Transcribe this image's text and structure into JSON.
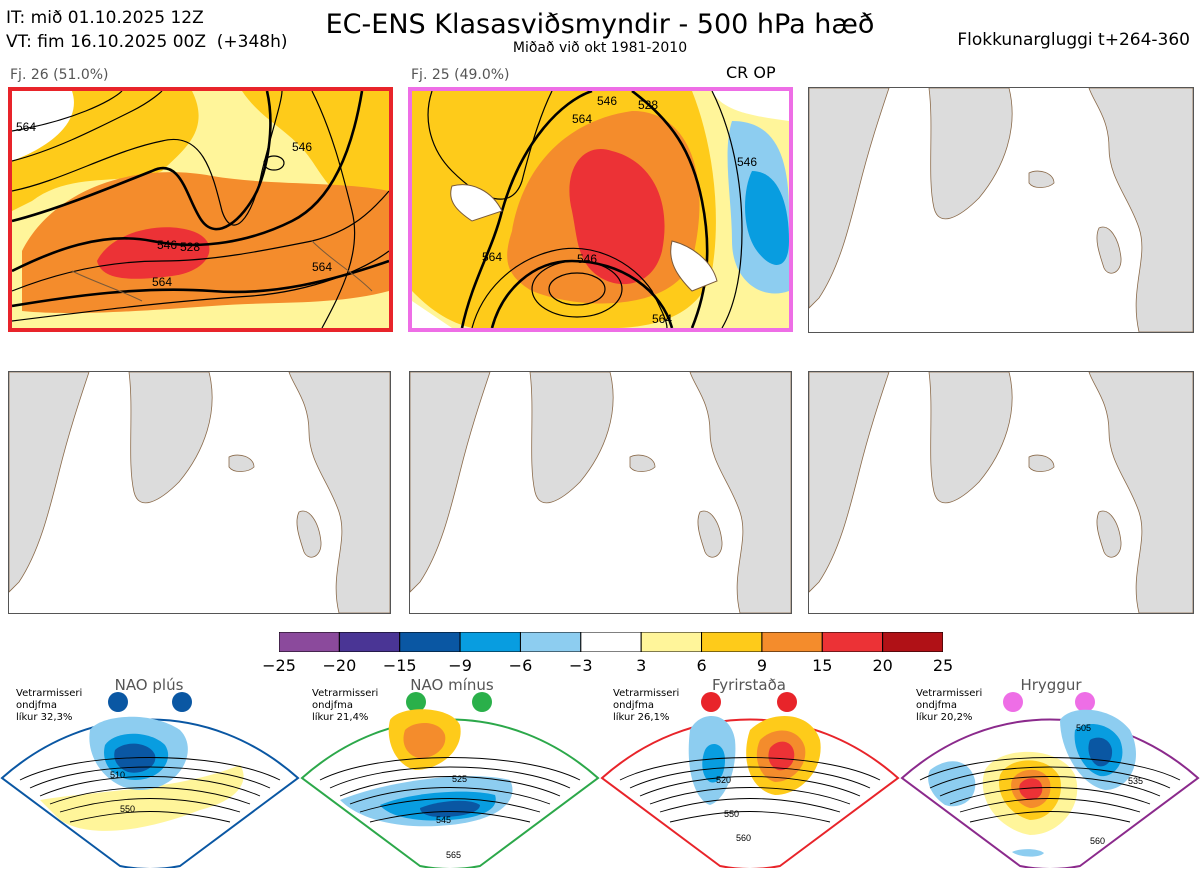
{
  "header": {
    "it_line": "IT: mið 01.10.2025 12Z",
    "vt_line": "VT: fim 16.10.2025 00Z  (+348h)",
    "title": "EC-ENS Klasasviðsmyndir - 500 hPa hæð",
    "subtitle": "Miðað við okt 1981-2010",
    "window_label": "Flokkunargluggi t+264-360"
  },
  "panels": [
    {
      "label": "Fj. 26 (51.0%)",
      "tag": "",
      "border_color": "#e8242a",
      "contours": [
        "528",
        "546",
        "564",
        "546",
        "564",
        "564"
      ]
    },
    {
      "label": "Fj. 25 (49.0%)",
      "tag": "CR OP",
      "border_color": "#ee6ee6",
      "contours": [
        "564",
        "546",
        "528",
        "546",
        "564",
        "546",
        "564"
      ]
    },
    {
      "label": "",
      "tag": "",
      "border_color": "#555555"
    },
    {
      "label": "",
      "tag": "",
      "border_color": "#555555"
    },
    {
      "label": "",
      "tag": "",
      "border_color": "#555555"
    },
    {
      "label": "",
      "tag": "",
      "border_color": "#555555"
    }
  ],
  "colorbar": {
    "ticks": [
      "−25",
      "−20",
      "−15",
      "−9",
      "−6",
      "−3",
      "3",
      "6",
      "9",
      "15",
      "20",
      "25"
    ],
    "colors": [
      "#8b4a9c",
      "#4a3595",
      "#0a57a3",
      "#089de0",
      "#8dcdf0",
      "#ffffff",
      "#fff59a",
      "#fecb1a",
      "#f48c2c",
      "#ec3236",
      "#b01116"
    ]
  },
  "regimes": [
    {
      "name": "NAO plús",
      "note": "Vetrarmisseri\nondjfma\nlíkur 32,3%",
      "color": "#0a57a3",
      "dot_color": "#0a57a3",
      "contours": [
        "510",
        "550"
      ]
    },
    {
      "name": "NAO mínus",
      "note": "Vetrarmisseri\nondjfma\nlíkur 21,4%",
      "color": "#2ca84a",
      "dot_color": "#2ab04a",
      "contours": [
        "525",
        "545",
        "565"
      ]
    },
    {
      "name": "Fyrirstaða",
      "note": "Vetrarmisseri\nondjfma\nlíkur 26,1%",
      "color": "#e8242a",
      "dot_color": "#e8242a",
      "contours": [
        "520",
        "550",
        "560"
      ]
    },
    {
      "name": "Hryggur",
      "note": "Vetrarmisseri\nondjfma\nlíkur 20,2%",
      "color": "#8b2a8c",
      "dot_color": "#ee6ee6",
      "contours": [
        "505",
        "535",
        "560"
      ]
    }
  ]
}
